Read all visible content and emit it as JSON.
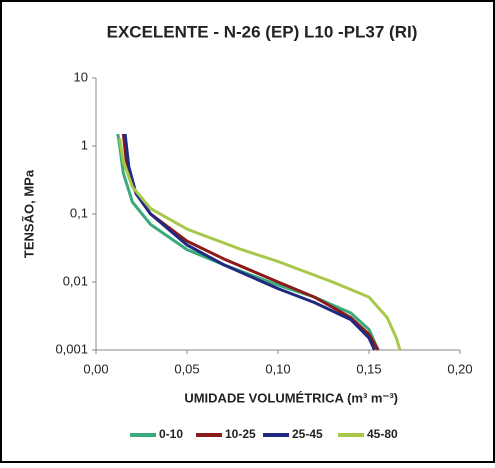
{
  "chart_data": {
    "type": "line",
    "title": "EXCELENTE - N-26 (EP) L10 -PL37 (RI)",
    "x_label": "UMIDADE VOLUMÉTRICA (m³ m⁻³)",
    "y_label": "TENSÃO, MPa",
    "log_y": true,
    "grid": false,
    "xlim": [
      0,
      0.2
    ],
    "ylim": [
      0.001,
      10
    ],
    "xticks": [
      {
        "value": 0,
        "label": "0,00"
      },
      {
        "value": 0.05,
        "label": "0,05"
      },
      {
        "value": 0.1,
        "label": "0,10"
      },
      {
        "value": 0.15,
        "label": "0,15"
      },
      {
        "value": 0.2,
        "label": "0,20"
      }
    ],
    "yticks": [
      {
        "value": 0.001,
        "label": "0,001"
      },
      {
        "value": 0.01,
        "label": "0,01"
      },
      {
        "value": 0.1,
        "label": "0,1"
      },
      1,
      10
    ],
    "series": [
      {
        "name": "0-10",
        "color": "#3aaa7a",
        "x": [
          0.012,
          0.013,
          0.015,
          0.02,
          0.03,
          0.05,
          0.07,
          0.1,
          0.12,
          0.14,
          0.15,
          0.155
        ],
        "values": [
          1.5,
          1,
          0.4,
          0.15,
          0.07,
          0.03,
          0.018,
          0.009,
          0.006,
          0.0035,
          0.002,
          0.001
        ]
      },
      {
        "name": "10-25",
        "color": "#8b1a1a",
        "x": [
          0.015,
          0.017,
          0.022,
          0.03,
          0.05,
          0.07,
          0.1,
          0.12,
          0.14,
          0.15,
          0.155
        ],
        "values": [
          1.5,
          0.5,
          0.2,
          0.1,
          0.04,
          0.022,
          0.01,
          0.006,
          0.003,
          0.0017,
          0.001
        ]
      },
      {
        "name": "25-45",
        "color": "#1f2a80",
        "x": [
          0.016,
          0.018,
          0.022,
          0.03,
          0.05,
          0.07,
          0.1,
          0.12,
          0.14,
          0.15,
          0.153
        ],
        "values": [
          1.5,
          0.5,
          0.2,
          0.1,
          0.035,
          0.018,
          0.008,
          0.005,
          0.0028,
          0.0015,
          0.001
        ]
      },
      {
        "name": "45-80",
        "color": "#a8c84a",
        "x": [
          0.013,
          0.015,
          0.02,
          0.03,
          0.05,
          0.08,
          0.1,
          0.13,
          0.15,
          0.16,
          0.165,
          0.167
        ],
        "values": [
          1.3,
          0.6,
          0.25,
          0.12,
          0.06,
          0.03,
          0.02,
          0.01,
          0.006,
          0.003,
          0.0015,
          0.001
        ]
      }
    ]
  }
}
